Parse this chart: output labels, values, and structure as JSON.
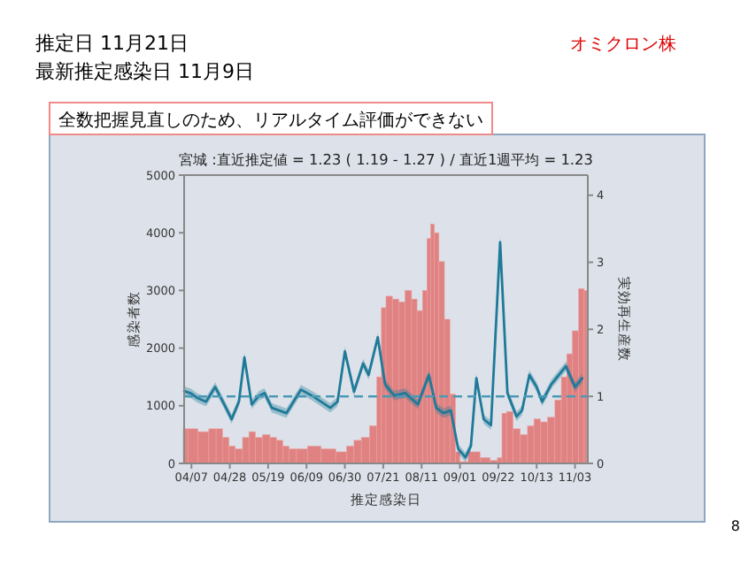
{
  "chart_data": {
    "type": "bar",
    "title": "宮城 :直近推定値 = 1.23 ( 1.19 - 1.27 ) / 直近1週平均 = 1.23",
    "xlabel": "推定感染日",
    "ylabel": "感染者数",
    "y2label": "実効再生産数",
    "annotations": [
      "推定日 11月21日",
      "最新推定感染日 11月9日",
      "オミクロン株",
      "全数把握見直しのため、リアルタイム評価ができない",
      "8"
    ],
    "xlim": [
      "--04-03",
      "--11-10"
    ],
    "xticks": [
      {
        "value": "--04-07",
        "label": "04/07"
      },
      {
        "value": "--04-28",
        "label": "04/28"
      },
      {
        "value": "--05-19",
        "label": "05/19"
      },
      {
        "value": "--06-09",
        "label": "06/09"
      },
      {
        "value": "--06-30",
        "label": "06/30"
      },
      {
        "value": "--07-21",
        "label": "07/21"
      },
      {
        "value": "--08-11",
        "label": "08/11"
      },
      {
        "value": "--09-01",
        "label": "09/01"
      },
      {
        "value": "--09-22",
        "label": "09/22"
      },
      {
        "value": "--10-13",
        "label": "10/13"
      },
      {
        "value": "--11-03",
        "label": "11/03"
      }
    ],
    "ylim": [
      0,
      5000
    ],
    "yticks": [
      0,
      1000,
      2000,
      3000,
      4000,
      5000
    ],
    "y2lim": [
      0,
      4.3
    ],
    "y2ticks": [
      0,
      1,
      2,
      3,
      4
    ],
    "ref_lines": [
      {
        "axis": "y2",
        "value": 1,
        "color": "#4a9ab5",
        "line_style": "dashed"
      }
    ],
    "series": [
      {
        "color": "#e08282",
        "x": [
          "--04-03",
          "--04-07",
          "--04-14",
          "--04-19",
          "--04-22",
          "--04-26",
          "--04-29",
          "--05-03",
          "--05-07",
          "--05-10",
          "--05-14",
          "--05-18",
          "--05-22",
          "--05-25",
          "--05-29",
          "--06-01",
          "--06-06",
          "--06-13",
          "--06-21",
          "--06-29",
          "--07-03",
          "--07-07",
          "--07-11",
          "--07-16",
          "--07-19",
          "--07-21",
          "--07-24",
          "--07-28",
          "--07-31",
          "--08-04",
          "--08-07",
          "--08-10",
          "--08-13",
          "--08-15",
          "--08-17",
          "--08-19",
          "--08-22",
          "--08-25",
          "--08-28",
          "--08-31",
          "--09-02",
          "--09-09",
          "--09-15",
          "--09-20",
          "--09-23",
          "--09-25",
          "--09-28",
          "--10-02",
          "--10-06",
          "--10-10",
          "--10-13",
          "--10-17",
          "--10-21",
          "--10-25",
          "--10-28",
          "--10-31",
          "--11-03",
          "--11-07",
          "--11-09"
        ],
        "values": [
          600,
          600,
          550,
          600,
          600,
          450,
          300,
          250,
          450,
          550,
          450,
          500,
          450,
          400,
          300,
          250,
          250,
          300,
          250,
          200,
          300,
          400,
          450,
          650,
          1500,
          2700,
          2900,
          2850,
          2800,
          3000,
          2850,
          2650,
          3000,
          3900,
          4150,
          4000,
          3500,
          2500,
          1200,
          200,
          30,
          200,
          100,
          50,
          100,
          870,
          900,
          600,
          500,
          650,
          770,
          720,
          800,
          1100,
          1500,
          1900,
          2300,
          3030,
          3000
        ]
      },
      {
        "type": "line",
        "axis": "y2",
        "color": "#1f7a99",
        "line_style": "solid",
        "x": [
          "--04-03",
          "--04-07",
          "--04-10",
          "--04-15",
          "--04-20",
          "--04-25",
          "--04-29",
          "--05-03",
          "--05-06",
          "--05-10",
          "--05-14",
          "--05-17",
          "--05-21",
          "--05-29",
          "--06-06",
          "--06-12",
          "--06-22",
          "--06-26",
          "--06-30",
          "--07-05",
          "--07-10",
          "--07-13",
          "--07-18",
          "--07-22",
          "--07-27",
          "--08-02",
          "--08-09",
          "--08-15",
          "--08-19",
          "--08-23",
          "--08-27",
          "--08-31",
          "--09-04",
          "--09-07",
          "--09-10",
          "--09-14",
          "--09-18",
          "--09-23",
          "--09-27",
          "--10-02",
          "--10-05",
          "--10-09",
          "--10-13",
          "--10-16",
          "--10-21",
          "--10-29",
          "--11-03",
          "--11-07"
        ],
        "values": [
          1.08,
          1.04,
          0.98,
          0.92,
          1.14,
          0.88,
          0.66,
          0.92,
          1.58,
          0.88,
          1.01,
          1.05,
          0.83,
          0.75,
          1.1,
          1.01,
          0.83,
          0.92,
          1.67,
          1.07,
          1.49,
          1.32,
          1.88,
          1.18,
          1.01,
          1.05,
          0.88,
          1.32,
          0.83,
          0.75,
          0.79,
          0.22,
          0.09,
          0.26,
          1.27,
          0.66,
          0.57,
          3.3,
          1.05,
          0.7,
          0.79,
          1.32,
          1.14,
          0.92,
          1.18,
          1.45,
          1.14,
          1.27
        ],
        "lower": [
          1.01,
          0.97,
          0.91,
          0.85,
          1.07,
          0.81,
          0.59,
          0.85,
          1.51,
          0.81,
          0.94,
          0.98,
          0.76,
          0.68,
          1.03,
          0.94,
          0.76,
          0.85,
          1.6,
          1.0,
          1.42,
          1.25,
          1.81,
          1.11,
          0.94,
          0.98,
          0.81,
          1.25,
          0.76,
          0.68,
          0.72,
          0.15,
          0.02,
          0.19,
          1.2,
          0.59,
          0.5,
          3.2,
          0.98,
          0.63,
          0.72,
          1.25,
          1.07,
          0.85,
          1.11,
          1.38,
          1.07,
          1.2
        ],
        "upper": [
          1.15,
          1.11,
          1.05,
          0.99,
          1.21,
          0.95,
          0.73,
          0.99,
          1.65,
          0.95,
          1.08,
          1.12,
          0.9,
          0.82,
          1.17,
          1.08,
          0.9,
          0.99,
          1.74,
          1.14,
          1.56,
          1.39,
          1.95,
          1.25,
          1.08,
          1.12,
          0.95,
          1.39,
          0.9,
          0.82,
          0.86,
          0.29,
          0.16,
          0.33,
          1.34,
          0.73,
          0.64,
          3.4,
          1.12,
          0.77,
          0.86,
          1.39,
          1.21,
          0.99,
          1.25,
          1.52,
          1.21,
          1.34
        ]
      }
    ]
  }
}
